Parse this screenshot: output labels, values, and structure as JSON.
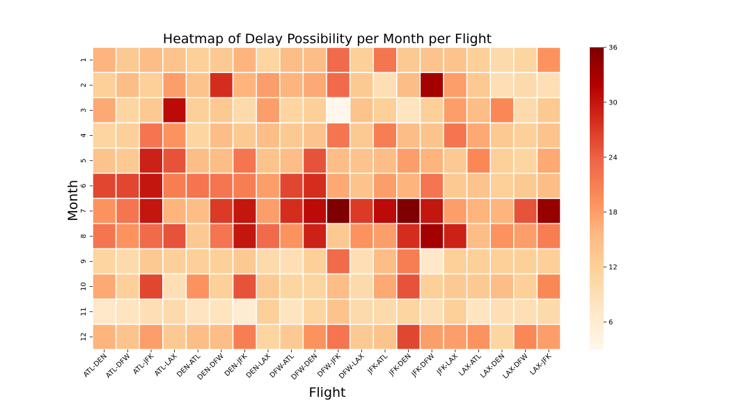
{
  "chart_data": {
    "type": "heatmap",
    "title": "Heatmap of Delay Possibility per Month per Flight",
    "xlabel": "Flight",
    "ylabel": "Month",
    "x_categories": [
      "ATL-DEN",
      "ATL-DFW",
      "ATL-JFK",
      "ATL-LAX",
      "DEN-ATL",
      "DEN-DFW",
      "DEN-JFK",
      "DEN-LAX",
      "DFW-ATL",
      "DFW-DEN",
      "DFW-JFK",
      "DFW-LAX",
      "JFK-ATL",
      "JFK-DEN",
      "JFK-DFW",
      "JFK-LAX",
      "LAX-ATL",
      "LAX-DEN",
      "LAX-DFW",
      "LAX-JFK"
    ],
    "y_categories": [
      "1",
      "2",
      "3",
      "4",
      "5",
      "6",
      "7",
      "8",
      "9",
      "10",
      "11",
      "12"
    ],
    "values": [
      [
        16,
        13,
        15,
        14,
        12,
        13,
        16,
        11,
        15,
        15,
        23,
        12,
        22,
        13,
        14,
        14,
        12,
        10,
        11,
        19
      ],
      [
        12,
        15,
        12,
        18,
        14,
        28,
        16,
        18,
        16,
        17,
        23,
        13,
        9,
        15,
        33,
        18,
        13,
        9,
        10,
        9
      ],
      [
        17,
        11,
        13,
        31,
        12,
        13,
        10,
        18,
        11,
        12,
        3,
        14,
        12,
        8,
        12,
        18,
        15,
        20,
        10,
        13
      ],
      [
        11,
        12,
        22,
        19,
        11,
        15,
        13,
        15,
        13,
        14,
        22,
        13,
        21,
        15,
        14,
        22,
        17,
        13,
        12,
        14
      ],
      [
        14,
        13,
        29,
        25,
        15,
        15,
        22,
        14,
        15,
        25,
        15,
        14,
        15,
        18,
        16,
        13,
        20,
        12,
        11,
        17
      ],
      [
        26,
        26,
        30,
        21,
        22,
        22,
        21,
        18,
        26,
        28,
        17,
        14,
        18,
        16,
        22,
        13,
        14,
        12,
        13,
        15
      ],
      [
        19,
        22,
        30,
        16,
        15,
        27,
        30,
        18,
        28,
        31,
        36,
        27,
        31,
        36,
        30,
        18,
        16,
        16,
        25,
        34
      ],
      [
        22,
        19,
        23,
        25,
        13,
        22,
        30,
        23,
        19,
        29,
        13,
        19,
        18,
        28,
        33,
        29,
        15,
        19,
        18,
        21
      ],
      [
        11,
        10,
        13,
        12,
        12,
        12,
        13,
        10,
        9,
        12,
        23,
        9,
        15,
        21,
        7,
        12,
        12,
        12,
        12,
        12
      ],
      [
        17,
        12,
        26,
        9,
        19,
        12,
        25,
        13,
        11,
        11,
        15,
        10,
        17,
        25,
        12,
        13,
        13,
        15,
        12,
        20
      ],
      [
        7,
        8,
        9,
        10,
        8,
        8,
        6,
        12,
        8,
        11,
        14,
        10,
        10,
        11,
        9,
        12,
        8,
        9,
        9,
        10
      ],
      [
        16,
        14,
        18,
        13,
        15,
        15,
        21,
        11,
        13,
        19,
        22,
        13,
        14,
        26,
        18,
        18,
        19,
        11,
        20,
        18
      ]
    ],
    "vmin": 3,
    "vmax": 36,
    "colormap": "OrRd",
    "colorbar_ticks": [
      "6",
      "12",
      "18",
      "24",
      "30",
      "36"
    ],
    "colorbar_tick_values": [
      6,
      12,
      18,
      24,
      30,
      36
    ],
    "grid_line_color": "#ffffff"
  }
}
